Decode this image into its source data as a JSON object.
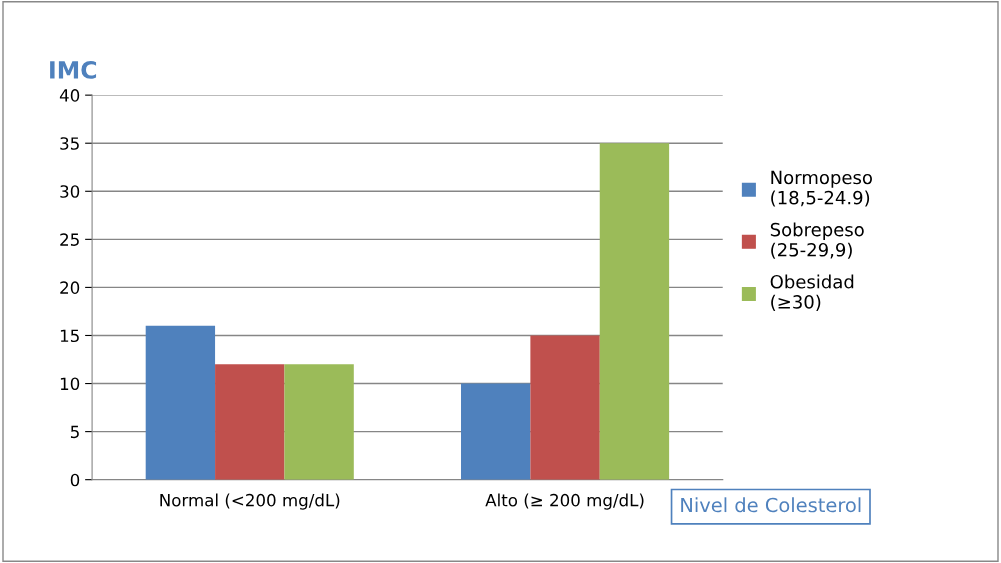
{
  "chart_data": {
    "type": "bar",
    "title": "IMC",
    "xlabel": "Nivel de Colesterol",
    "categories": [
      "Normal (<200 mg/dL)",
      "Alto (≥ 200 mg/dL)"
    ],
    "series": [
      {
        "name": "Normopeso (18,5-24.9)",
        "color": "#4f81bd",
        "values": [
          16,
          10
        ]
      },
      {
        "name": "Sobrepeso (25-29,9)",
        "color": "#c0504d",
        "values": [
          12,
          15
        ]
      },
      {
        "name": "Obesidad (≥30)",
        "color": "#9bbb59",
        "values": [
          12,
          35
        ]
      }
    ],
    "ylim": [
      0,
      40
    ],
    "yticks": [
      0,
      5,
      10,
      15,
      20,
      25,
      30,
      35,
      40
    ],
    "grid": "y",
    "legend": "right"
  }
}
